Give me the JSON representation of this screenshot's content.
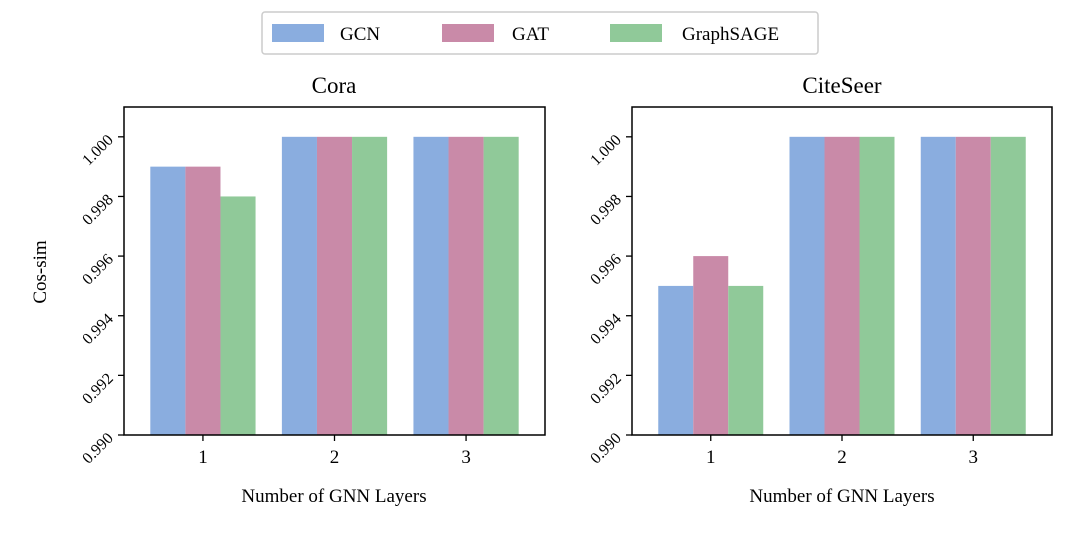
{
  "legend": {
    "entries": [
      {
        "name": "GCN",
        "color": "#8aaddf"
      },
      {
        "name": "GAT",
        "color": "#c98aa8"
      },
      {
        "name": "GraphSAGE",
        "color": "#90c999"
      }
    ]
  },
  "chart_data": [
    {
      "type": "bar",
      "title": "Cora",
      "xlabel": "Number of GNN Layers",
      "ylabel": "Cos-sim",
      "categories": [
        "1",
        "2",
        "3"
      ],
      "ylim": [
        0.99,
        1.001
      ],
      "yticks": [
        "0.990",
        "0.992",
        "0.994",
        "0.996",
        "0.998",
        "1.000"
      ],
      "series": [
        {
          "name": "GCN",
          "values": [
            0.999,
            1.0,
            1.0
          ]
        },
        {
          "name": "GAT",
          "values": [
            0.999,
            1.0,
            1.0
          ]
        },
        {
          "name": "GraphSAGE",
          "values": [
            0.998,
            1.0,
            1.0
          ]
        }
      ]
    },
    {
      "type": "bar",
      "title": "CiteSeer",
      "xlabel": "Number of GNN Layers",
      "ylabel": "",
      "categories": [
        "1",
        "2",
        "3"
      ],
      "ylim": [
        0.99,
        1.001
      ],
      "yticks": [
        "0.990",
        "0.992",
        "0.994",
        "0.996",
        "0.998",
        "1.000"
      ],
      "series": [
        {
          "name": "GCN",
          "values": [
            0.995,
            1.0,
            1.0
          ]
        },
        {
          "name": "GAT",
          "values": [
            0.996,
            1.0,
            1.0
          ]
        },
        {
          "name": "GraphSAGE",
          "values": [
            0.995,
            1.0,
            1.0
          ]
        }
      ]
    }
  ]
}
